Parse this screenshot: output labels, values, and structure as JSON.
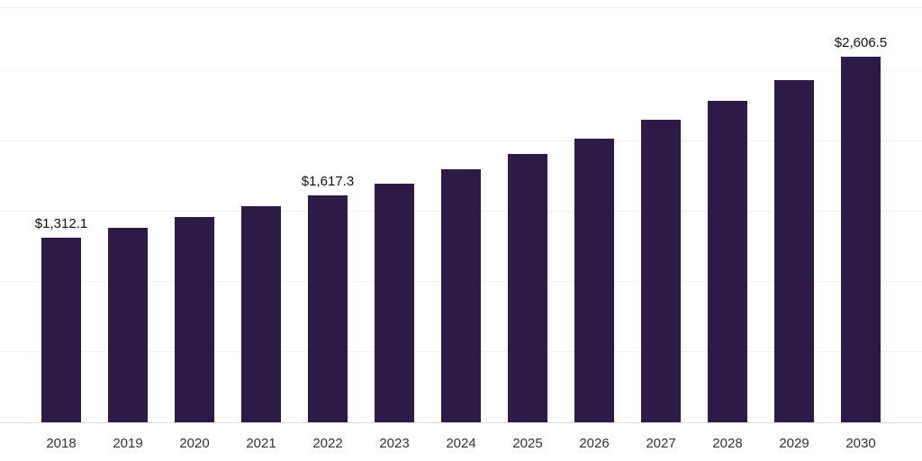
{
  "chart_data": {
    "type": "bar",
    "title": "",
    "xlabel": "",
    "ylabel": "",
    "categories": [
      "2018",
      "2019",
      "2020",
      "2021",
      "2022",
      "2023",
      "2024",
      "2025",
      "2026",
      "2027",
      "2028",
      "2029",
      "2030"
    ],
    "values": [
      1312.1,
      1385,
      1460,
      1540,
      1617.3,
      1700,
      1805,
      1910,
      2020,
      2155,
      2290,
      2440,
      2606.5
    ],
    "data_labels": {
      "2018": "$1,312.1",
      "2022": "$1,617.3",
      "2030": "$2,606.5"
    },
    "ylim": [
      0,
      2950
    ],
    "gridline_step": 500,
    "grid": "horizontal",
    "legend": "none",
    "bar_color": "#2e1a47",
    "gridline_color": "#f2f2f2",
    "axis_line_color": "#d9d9d9",
    "value_label_color": "#111111",
    "tick_label_color": "#333333"
  }
}
